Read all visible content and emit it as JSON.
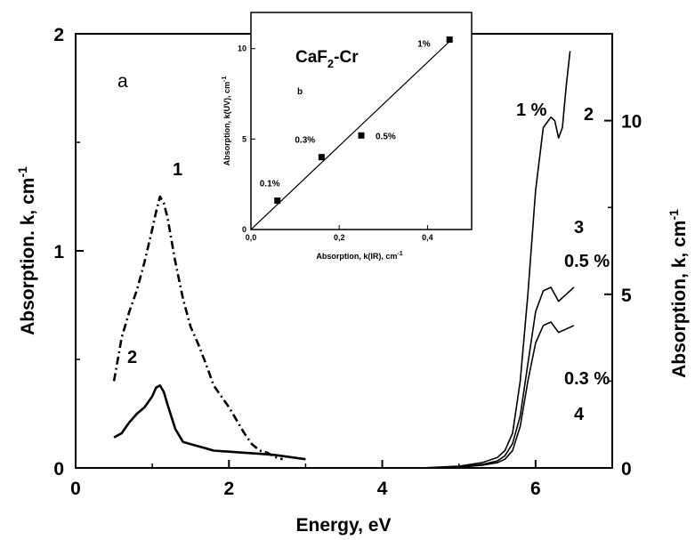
{
  "chart_data": [
    {
      "type": "line",
      "panel_label": "a",
      "xlabel": "Energy, eV",
      "ylabel_left": "Absorption. k, cm",
      "ylabel_left_sup": "-1",
      "ylabel_right": "Absorption, k, cm",
      "ylabel_right_sup": "-1",
      "xlim": [
        0,
        7
      ],
      "ylim_left": [
        0,
        2
      ],
      "ylim_right": [
        0,
        12.5
      ],
      "x_ticks": [
        "0",
        "2",
        "4",
        "6"
      ],
      "y_left_ticks": [
        "0",
        "1",
        "2"
      ],
      "y_right_ticks": [
        "0",
        "5",
        "10"
      ],
      "series": [
        {
          "label": "1",
          "axis": "left",
          "style": "dash-dot",
          "x": [
            0.5,
            0.55,
            0.6,
            0.7,
            0.8,
            0.9,
            1.0,
            1.05,
            1.1,
            1.15,
            1.2,
            1.3,
            1.4,
            1.5,
            1.6,
            1.7,
            1.8,
            1.9,
            2.0,
            2.1,
            2.2,
            2.3,
            2.4,
            2.5,
            2.6,
            2.7
          ],
          "y": [
            0.4,
            0.5,
            0.6,
            0.72,
            0.82,
            0.95,
            1.1,
            1.18,
            1.25,
            1.22,
            1.15,
            0.95,
            0.78,
            0.65,
            0.57,
            0.48,
            0.38,
            0.33,
            0.28,
            0.22,
            0.16,
            0.11,
            0.08,
            0.07,
            0.05,
            0.04
          ]
        },
        {
          "label": "2",
          "axis": "left",
          "style": "solid",
          "x": [
            0.5,
            0.6,
            0.7,
            0.8,
            0.9,
            1.0,
            1.05,
            1.1,
            1.15,
            1.2,
            1.3,
            1.4,
            1.5,
            1.6,
            1.7,
            1.8,
            2.0,
            2.2,
            2.4,
            2.6,
            2.8,
            3.0
          ],
          "y": [
            0.14,
            0.16,
            0.21,
            0.25,
            0.28,
            0.33,
            0.37,
            0.38,
            0.35,
            0.29,
            0.18,
            0.12,
            0.11,
            0.1,
            0.09,
            0.08,
            0.075,
            0.07,
            0.065,
            0.06,
            0.05,
            0.04
          ]
        },
        {
          "label": "2",
          "axis": "right",
          "style": "solid",
          "annotation": "1 %",
          "x": [
            4.5,
            5.0,
            5.3,
            5.5,
            5.6,
            5.7,
            5.8,
            5.9,
            6.0,
            6.1,
            6.2,
            6.25,
            6.3,
            6.35,
            6.4,
            6.45
          ],
          "y": [
            0.0,
            0.05,
            0.15,
            0.3,
            0.5,
            1.0,
            2.5,
            5.0,
            8.0,
            9.8,
            10.1,
            10.0,
            9.5,
            9.8,
            11.0,
            12.0
          ]
        },
        {
          "label": "3",
          "axis": "right",
          "style": "solid",
          "annotation": "0.5 %",
          "x": [
            4.5,
            5.0,
            5.3,
            5.5,
            5.6,
            5.7,
            5.8,
            5.9,
            6.0,
            6.1,
            6.2,
            6.3,
            6.4,
            6.5
          ],
          "y": [
            0.0,
            0.03,
            0.1,
            0.2,
            0.35,
            0.7,
            1.5,
            3.0,
            4.5,
            5.1,
            5.2,
            4.8,
            5.0,
            5.2
          ]
        },
        {
          "label": "4",
          "axis": "right",
          "style": "solid",
          "annotation": "0.3 %",
          "x": [
            5.0,
            5.3,
            5.5,
            5.6,
            5.7,
            5.8,
            5.9,
            6.0,
            6.1,
            6.2,
            6.3,
            6.4,
            6.5
          ],
          "y": [
            0.02,
            0.08,
            0.15,
            0.25,
            0.5,
            1.2,
            2.5,
            3.6,
            4.1,
            4.2,
            3.9,
            4.0,
            4.1
          ]
        }
      ]
    },
    {
      "type": "scatter",
      "inset": true,
      "title": "CaF",
      "title_sub": "2",
      "title_suffix": "-Cr",
      "panel_label": "b",
      "xlabel": "Absorption, k(IR), cm",
      "xlabel_sup": "-1",
      "ylabel": "Absorption, k(UV), cm",
      "ylabel_sup": "-1",
      "xlim": [
        0,
        0.5
      ],
      "ylim": [
        0,
        12
      ],
      "x_ticks": [
        "0,0",
        "0,2",
        "0,4"
      ],
      "y_ticks": [
        "0",
        "5",
        "10"
      ],
      "points": [
        {
          "x": 0.06,
          "y": 1.6,
          "label": "0.1%"
        },
        {
          "x": 0.16,
          "y": 4.0,
          "label": "0.3%"
        },
        {
          "x": 0.25,
          "y": 5.2,
          "label": "0.5%"
        },
        {
          "x": 0.45,
          "y": 10.5,
          "label": "1%"
        }
      ],
      "fit_line": {
        "x": [
          0.0,
          0.45
        ],
        "y": [
          0.0,
          10.4
        ]
      }
    }
  ]
}
